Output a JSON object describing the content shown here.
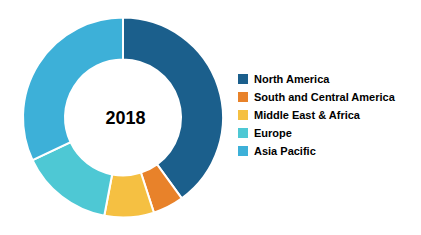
{
  "chart_data": {
    "type": "pie",
    "categories": [
      "North America",
      "South and Central America",
      "Middle East & Africa",
      "Europe",
      "Asia Pacific"
    ],
    "values": [
      40,
      5,
      8,
      15,
      32
    ],
    "colors": [
      "#1b5f8c",
      "#e8822a",
      "#f5c042",
      "#4ec8d4",
      "#3db0d8"
    ],
    "annotations": [
      "2018"
    ],
    "legend": "right"
  }
}
